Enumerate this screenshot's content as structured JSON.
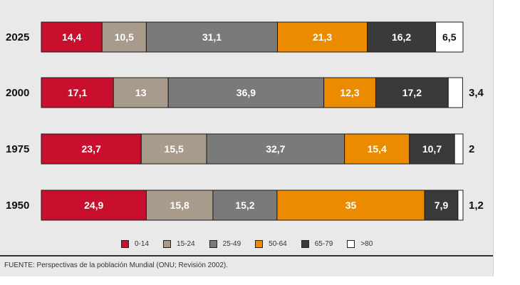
{
  "chart_data": {
    "type": "bar",
    "orientation": "horizontal",
    "stacked": true,
    "categories": [
      "2025",
      "2000",
      "1975",
      "1950"
    ],
    "series": [
      {
        "name": "0-14",
        "color": "#c8102e",
        "values": [
          14.4,
          17.1,
          23.7,
          24.9
        ],
        "labels": [
          "14,4",
          "17,1",
          "23,7",
          "24,9"
        ]
      },
      {
        "name": "15-24",
        "color": "#a89b8c",
        "values": [
          10.5,
          13,
          15.5,
          15.8
        ],
        "labels": [
          "10,5",
          "13",
          "15,5",
          "15,8"
        ]
      },
      {
        "name": "25-49",
        "color": "#7a7a7a",
        "values": [
          31.1,
          36.9,
          32.7,
          15.2
        ],
        "labels": [
          "31,1",
          "36,9",
          "32,7",
          "15,2"
        ]
      },
      {
        "name": "50-64",
        "color": "#ed8b00",
        "values": [
          21.3,
          12.3,
          15.4,
          35
        ],
        "labels": [
          "21,3",
          "12,3",
          "15,4",
          "35"
        ]
      },
      {
        "name": "65-79",
        "color": "#3a3a3a",
        "values": [
          16.2,
          17.2,
          10.7,
          7.9
        ],
        "labels": [
          "16,2",
          "17,2",
          "10,7",
          "7,9"
        ]
      },
      {
        "name": ">80",
        "color": "#ffffff",
        "values": [
          6.5,
          3.4,
          2,
          1.2
        ],
        "labels": [
          "6,5",
          "3,4",
          "2",
          "1,2"
        ]
      }
    ],
    "xlim": [
      0,
      100
    ],
    "legend_position": "bottom"
  },
  "source": "FUENTE: Perspectivas de la población Mundial (ONU; Revisión 2002)."
}
